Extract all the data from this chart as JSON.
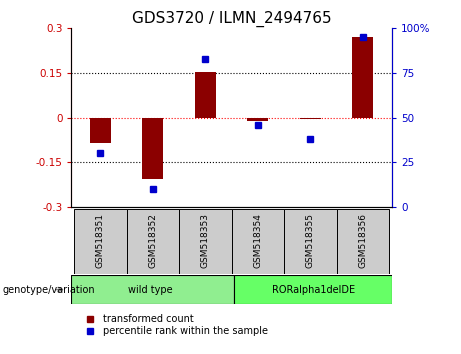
{
  "title": "GDS3720 / ILMN_2494765",
  "samples": [
    "GSM518351",
    "GSM518352",
    "GSM518353",
    "GSM518354",
    "GSM518355",
    "GSM518356"
  ],
  "transformed_count": [
    -0.085,
    -0.205,
    0.155,
    -0.01,
    -0.005,
    0.27
  ],
  "percentile_rank": [
    30,
    10,
    83,
    46,
    38,
    95
  ],
  "ylim_left": [
    -0.3,
    0.3
  ],
  "ylim_right": [
    0,
    100
  ],
  "yticks_left": [
    -0.3,
    -0.15,
    0,
    0.15,
    0.3
  ],
  "yticks_right": [
    0,
    25,
    50,
    75,
    100
  ],
  "ytick_labels_left": [
    "-0.3",
    "-0.15",
    "0",
    "0.15",
    "0.3"
  ],
  "ytick_labels_right": [
    "0",
    "25",
    "50",
    "75",
    "100%"
  ],
  "bar_color": "#8B0000",
  "dot_color": "#0000CC",
  "left_axis_color": "#CC0000",
  "right_axis_color": "#0000CC",
  "wt_color": "#90EE90",
  "ro_color": "#66FF66",
  "genotype_label": "genotype/variation",
  "legend_red_label": "transformed count",
  "legend_blue_label": "percentile rank within the sample",
  "title_fontsize": 11,
  "tick_fontsize": 7.5,
  "label_fontsize": 7,
  "sample_fontsize": 6.5
}
